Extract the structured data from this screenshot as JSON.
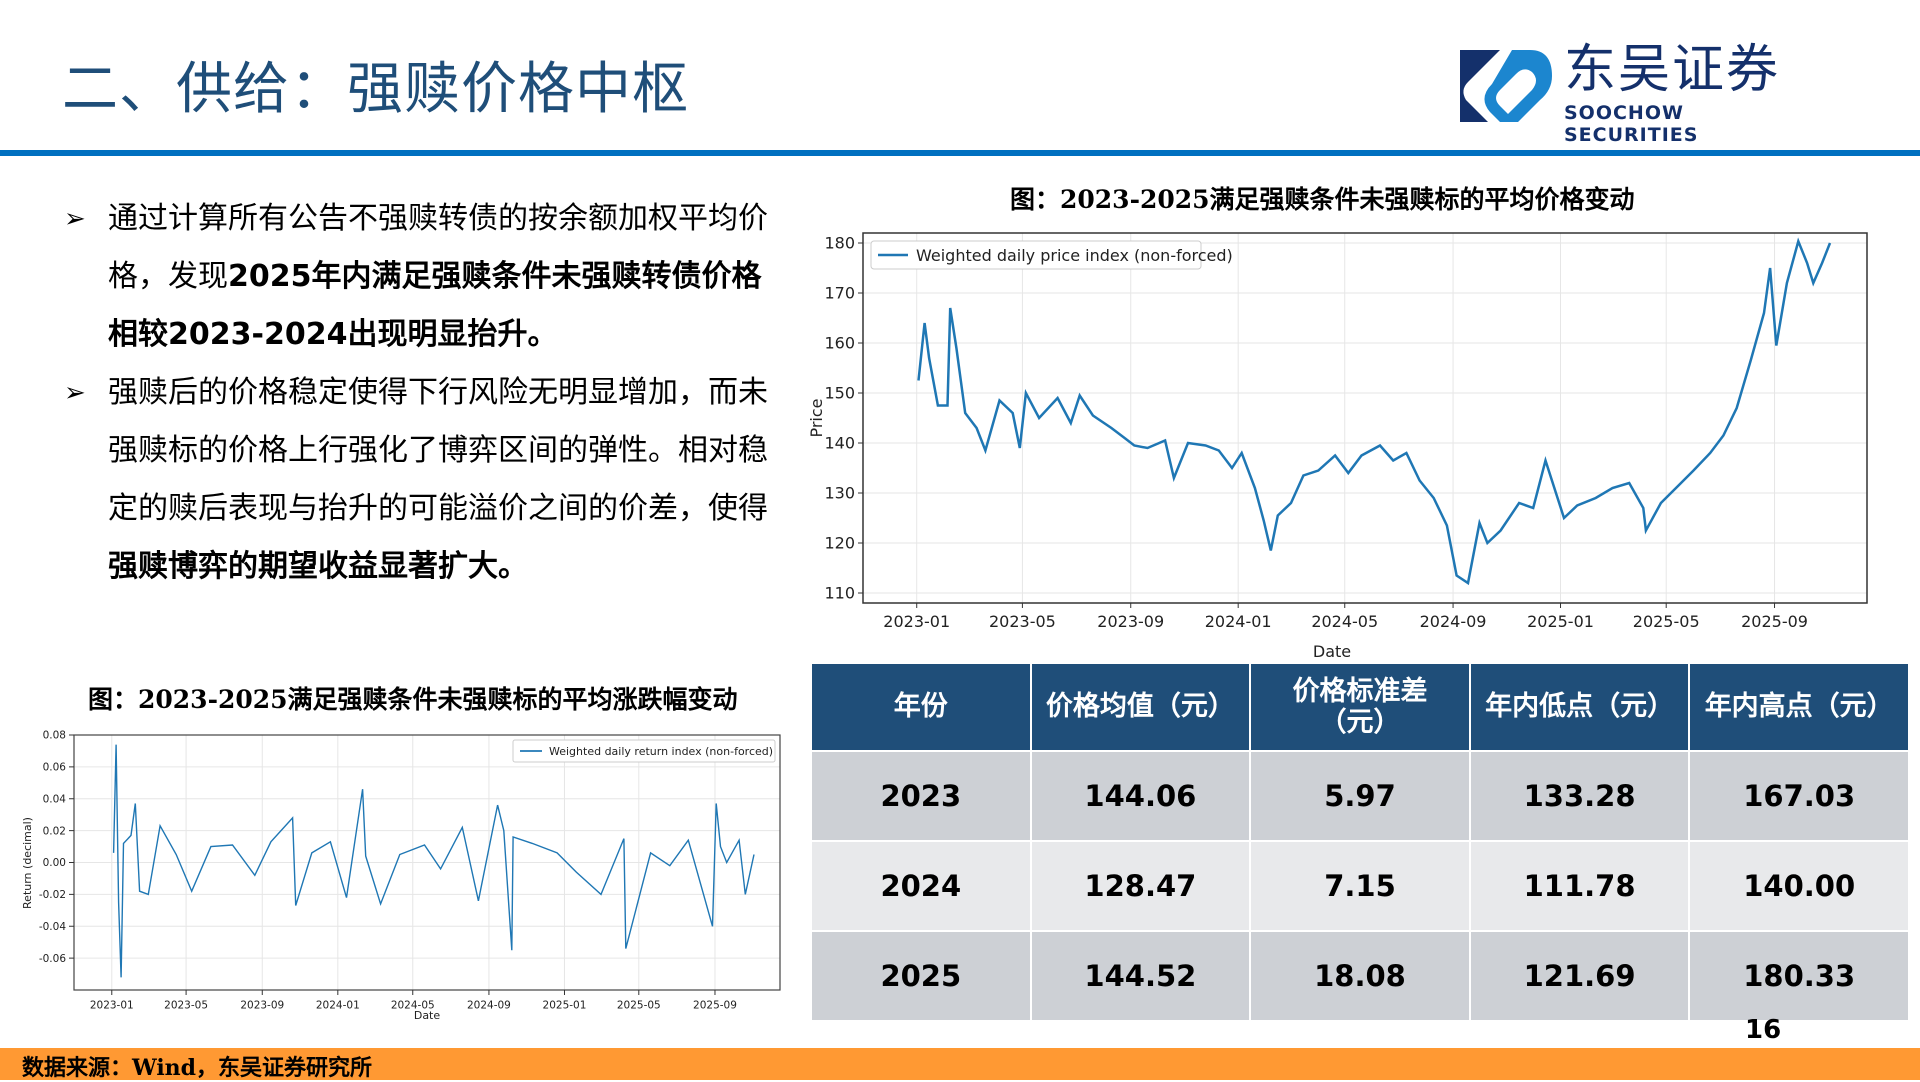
{
  "header": {
    "title": "二、供给：强赎价格中枢",
    "logo_cn": "东吴证券",
    "logo_en": "SOOCHOW SECURITIES",
    "colors": {
      "title": "#1F4E79",
      "rule": "#0070C0",
      "logo_dark": "#14306B",
      "logo_light": "#1C86CF"
    }
  },
  "bullets": [
    {
      "icon": "arrow-bullet-icon",
      "segments": [
        {
          "text": "通过计算所有公告不强赎转债的按余额加权平均价格，发现",
          "bold": false
        },
        {
          "text": "2025年内满足强赎条件未强赎转债价格相较2023-2024出现明显抬升。",
          "bold": true
        }
      ]
    },
    {
      "icon": "arrow-bullet-icon",
      "segments": [
        {
          "text": "强赎后的价格稳定使得下行风险无明显增加，而未强赎标的价格上行强化了博弈区间的弹性。相对稳定的赎后表现与抬升的可能溢价之间的价差，使得",
          "bold": false
        },
        {
          "text": "强赎博弈的期望收益显著扩大。",
          "bold": true
        }
      ]
    }
  ],
  "figure1": {
    "title": "图：2023-2025满足强赎条件未强赎标的平均价格变动"
  },
  "figure2": {
    "title": "图：2023-2025满足强赎条件未强赎标的平均涨跌幅变动"
  },
  "chart_data": [
    {
      "type": "line",
      "title": "图：2023-2025满足强赎条件未强赎标的平均价格变动",
      "xlabel": "Date",
      "ylabel": "Price",
      "legend": [
        "Weighted daily price index (non-forced)"
      ],
      "legend_position": "upper left",
      "grid": true,
      "ylim": [
        108,
        182
      ],
      "yticks": [
        110,
        120,
        130,
        140,
        150,
        160,
        170,
        180
      ],
      "xticks": [
        "2023-01",
        "2023-05",
        "2023-09",
        "2024-01",
        "2024-05",
        "2024-09",
        "2025-01",
        "2025-05",
        "2025-09"
      ],
      "color": "#1F77B4",
      "x": [
        "2023-01-03",
        "2023-01-10",
        "2023-01-15",
        "2023-01-25",
        "2023-02-05",
        "2023-02-08",
        "2023-02-15",
        "2023-02-25",
        "2023-03-10",
        "2023-03-20",
        "2023-04-05",
        "2023-04-20",
        "2023-04-28",
        "2023-05-05",
        "2023-05-20",
        "2023-06-10",
        "2023-06-25",
        "2023-07-05",
        "2023-07-20",
        "2023-08-10",
        "2023-08-25",
        "2023-09-05",
        "2023-09-20",
        "2023-10-10",
        "2023-10-20",
        "2023-11-05",
        "2023-11-25",
        "2023-12-10",
        "2023-12-25",
        "2024-01-05",
        "2024-01-20",
        "2024-01-30",
        "2024-02-07",
        "2024-02-15",
        "2024-03-01",
        "2024-03-15",
        "2024-04-01",
        "2024-04-20",
        "2024-05-05",
        "2024-05-20",
        "2024-06-10",
        "2024-06-25",
        "2024-07-10",
        "2024-07-25",
        "2024-08-10",
        "2024-08-25",
        "2024-09-05",
        "2024-09-18",
        "2024-10-01",
        "2024-10-10",
        "2024-10-25",
        "2024-11-15",
        "2024-12-01",
        "2024-12-15",
        "2025-01-05",
        "2025-01-20",
        "2025-02-10",
        "2025-03-01",
        "2025-03-20",
        "2025-04-05",
        "2025-04-08",
        "2025-04-25",
        "2025-05-15",
        "2025-06-01",
        "2025-06-20",
        "2025-07-05",
        "2025-07-20",
        "2025-08-05",
        "2025-08-20",
        "2025-08-27",
        "2025-09-03",
        "2025-09-15",
        "2025-09-28",
        "2025-10-08",
        "2025-10-15",
        "2025-10-25",
        "2025-11-03"
      ],
      "series": [
        {
          "name": "Weighted daily price index (non-forced)",
          "values": [
            152.5,
            164.0,
            157.0,
            147.5,
            147.5,
            167.0,
            159.0,
            146.0,
            143.0,
            138.5,
            148.5,
            146.0,
            139.0,
            150.0,
            145.0,
            149.0,
            144.0,
            149.5,
            145.5,
            143.0,
            141.0,
            139.5,
            139.0,
            140.5,
            133.0,
            140.0,
            139.5,
            138.5,
            135.0,
            138.0,
            131.0,
            124.5,
            118.5,
            125.5,
            128.0,
            133.5,
            134.5,
            137.5,
            134.0,
            137.5,
            139.5,
            136.5,
            138.0,
            132.5,
            129.0,
            123.5,
            113.5,
            112.0,
            124.0,
            120.0,
            122.5,
            128.0,
            127.0,
            136.5,
            125.0,
            127.5,
            129.0,
            131.0,
            132.0,
            127.0,
            122.5,
            128.0,
            131.5,
            134.5,
            138.0,
            141.5,
            147.0,
            156.5,
            166.0,
            175.0,
            159.5,
            172.0,
            180.33,
            176.0,
            172.0,
            176.0,
            180.0
          ]
        }
      ]
    },
    {
      "type": "line",
      "title": "图：2023-2025满足强赎条件未强赎标的平均涨跌幅变动",
      "xlabel": "Date",
      "ylabel": "Return (decimal)",
      "legend": [
        "Weighted daily return index (non-forced)"
      ],
      "legend_position": "upper right",
      "grid": true,
      "ylim": [
        -0.08,
        0.08
      ],
      "yticks": [
        -0.06,
        -0.04,
        -0.02,
        0.0,
        0.02,
        0.04,
        0.06,
        0.08
      ],
      "ytick_labels": [
        "-0.06",
        "-0.04",
        "-0.02",
        "0.00",
        "0.02",
        "0.04",
        "0.06",
        "0.08"
      ],
      "xticks": [
        "2023-01",
        "2023-05",
        "2023-09",
        "2024-01",
        "2024-05",
        "2024-09",
        "2025-01",
        "2025-05",
        "2025-09"
      ],
      "color": "#1F77B4",
      "x": [
        "2023-01-04",
        "2023-01-08",
        "2023-01-12",
        "2023-01-16",
        "2023-01-20",
        "2023-02-01",
        "2023-02-08",
        "2023-02-15",
        "2023-03-01",
        "2023-03-20",
        "2023-04-15",
        "2023-05-10",
        "2023-06-10",
        "2023-07-15",
        "2023-08-20",
        "2023-09-15",
        "2023-10-20",
        "2023-10-25",
        "2023-11-20",
        "2023-12-20",
        "2024-01-15",
        "2024-02-10",
        "2024-02-15",
        "2024-03-10",
        "2024-04-10",
        "2024-05-20",
        "2024-06-15",
        "2024-07-20",
        "2024-08-15",
        "2024-09-15",
        "2024-09-25",
        "2024-10-08",
        "2024-10-10",
        "2024-11-10",
        "2024-12-20",
        "2025-01-20",
        "2025-03-01",
        "2025-04-07",
        "2025-04-10",
        "2025-05-20",
        "2025-06-20",
        "2025-07-20",
        "2025-08-28",
        "2025-09-03",
        "2025-09-10",
        "2025-09-20",
        "2025-10-10",
        "2025-10-20",
        "2025-11-03"
      ],
      "series": [
        {
          "name": "Weighted daily return index (non-forced)",
          "values": [
            0.006,
            0.074,
            -0.025,
            -0.072,
            0.012,
            0.017,
            0.037,
            -0.018,
            -0.02,
            0.023,
            0.005,
            -0.018,
            0.01,
            0.011,
            -0.008,
            0.013,
            0.028,
            -0.027,
            0.006,
            0.013,
            -0.022,
            0.046,
            0.004,
            -0.026,
            0.005,
            0.011,
            -0.004,
            0.022,
            -0.024,
            0.036,
            0.02,
            -0.055,
            0.016,
            0.012,
            0.006,
            -0.006,
            -0.02,
            0.015,
            -0.054,
            0.006,
            -0.002,
            0.014,
            -0.04,
            0.037,
            0.01,
            0.0,
            0.014,
            -0.02,
            0.005
          ]
        }
      ]
    }
  ],
  "table": {
    "headers": [
      "年份",
      "价格均值（元）",
      "价格标准差（元）",
      "年内低点（元）",
      "年内高点（元）"
    ],
    "header_lines": [
      [
        "年份"
      ],
      [
        "价格均值（元）"
      ],
      [
        "价格标准差",
        "（元）"
      ],
      [
        "年内低点（元）"
      ],
      [
        "年内高点（元）"
      ]
    ],
    "rows": [
      [
        "2023",
        "144.06",
        "5.97",
        "133.28",
        "167.03"
      ],
      [
        "2024",
        "128.47",
        "7.15",
        "111.78",
        "140.00"
      ],
      [
        "2025",
        "144.52",
        "18.08",
        "121.69",
        "180.33"
      ]
    ],
    "colors": {
      "header_bg": "#1F4E79",
      "row_dark": "#CDD0D5",
      "row_light": "#E8E9EB"
    }
  },
  "page_number": "16",
  "footer": {
    "source": "数据来源：Wind，东吴证券研究所",
    "bg_color": "#FF9933"
  }
}
